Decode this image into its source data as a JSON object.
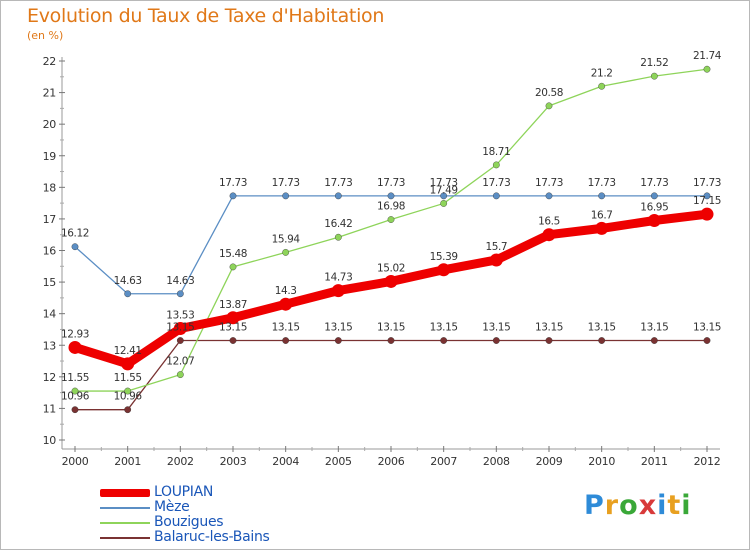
{
  "header": {
    "title": "Evolution du Taux de Taxe d'Habitation",
    "unit": "(en %)"
  },
  "brand": {
    "letters": [
      "P",
      "r",
      "o",
      "x",
      "i",
      "t",
      "i"
    ],
    "colors": [
      "#2e8bd8",
      "#e8a020",
      "#3aa838",
      "#d83a3a",
      "#2e8bd8",
      "#e8a020",
      "#3aa838"
    ]
  },
  "chart_data": {
    "type": "line",
    "title": "Evolution du Taux de Taxe d'Habitation",
    "ylabel": "(en %)",
    "xlabel": "",
    "x": [
      "2000",
      "2001",
      "2002",
      "2003",
      "2004",
      "2005",
      "2006",
      "2007",
      "2008",
      "2009",
      "2010",
      "2011",
      "2012"
    ],
    "ylim": [
      10,
      22
    ],
    "yticks": [
      "10",
      "11",
      "12",
      "13",
      "14",
      "15",
      "16",
      "17",
      "18",
      "19",
      "20",
      "21",
      "22"
    ],
    "grid": false,
    "legend_position": "bottom-left",
    "series": [
      {
        "name": "LOUPIAN",
        "color": "#ee0000",
        "values": [
          12.93,
          12.41,
          13.53,
          13.87,
          14.3,
          14.73,
          15.02,
          15.39,
          15.7,
          16.5,
          16.7,
          16.95,
          17.15
        ],
        "labels": [
          "12.93",
          "12.41",
          "13.53",
          "13.87",
          "14.3",
          "14.73",
          "15.02",
          "15.39",
          "15.7",
          "16.5",
          "16.7",
          "16.95",
          "17.15"
        ]
      },
      {
        "name": "Mèze",
        "color": "#5b8ec4",
        "values": [
          16.12,
          14.63,
          14.63,
          17.73,
          17.73,
          17.73,
          17.73,
          17.73,
          17.73,
          17.73,
          17.73,
          17.73,
          17.73
        ],
        "labels": [
          "16.12",
          "14.63",
          "14.63",
          "17.73",
          "17.73",
          "17.73",
          "17.73",
          "17.73",
          "17.73",
          "17.73",
          "17.73",
          "17.73",
          "17.73"
        ]
      },
      {
        "name": "Bouzigues",
        "color": "#8ed45a",
        "values": [
          11.55,
          11.55,
          12.07,
          15.48,
          15.94,
          16.42,
          16.98,
          17.49,
          18.71,
          20.58,
          21.2,
          21.52,
          21.74
        ],
        "labels": [
          "11.55",
          "11.55",
          "12.07",
          "15.48",
          "15.94",
          "16.42",
          "16.98",
          "17.49",
          "18.71",
          "20.58",
          "21.2",
          "21.52",
          "21.74"
        ]
      },
      {
        "name": "Balaruc-les-Bains",
        "color": "#7a3232",
        "values": [
          10.96,
          10.96,
          13.15,
          13.15,
          13.15,
          13.15,
          13.15,
          13.15,
          13.15,
          13.15,
          13.15,
          13.15,
          13.15
        ],
        "labels": [
          "10.96",
          "10.96",
          "13.15",
          "13.15",
          "13.15",
          "13.15",
          "13.15",
          "13.15",
          "13.15",
          "13.15",
          "13.15",
          "13.15",
          "13.15"
        ]
      }
    ]
  }
}
